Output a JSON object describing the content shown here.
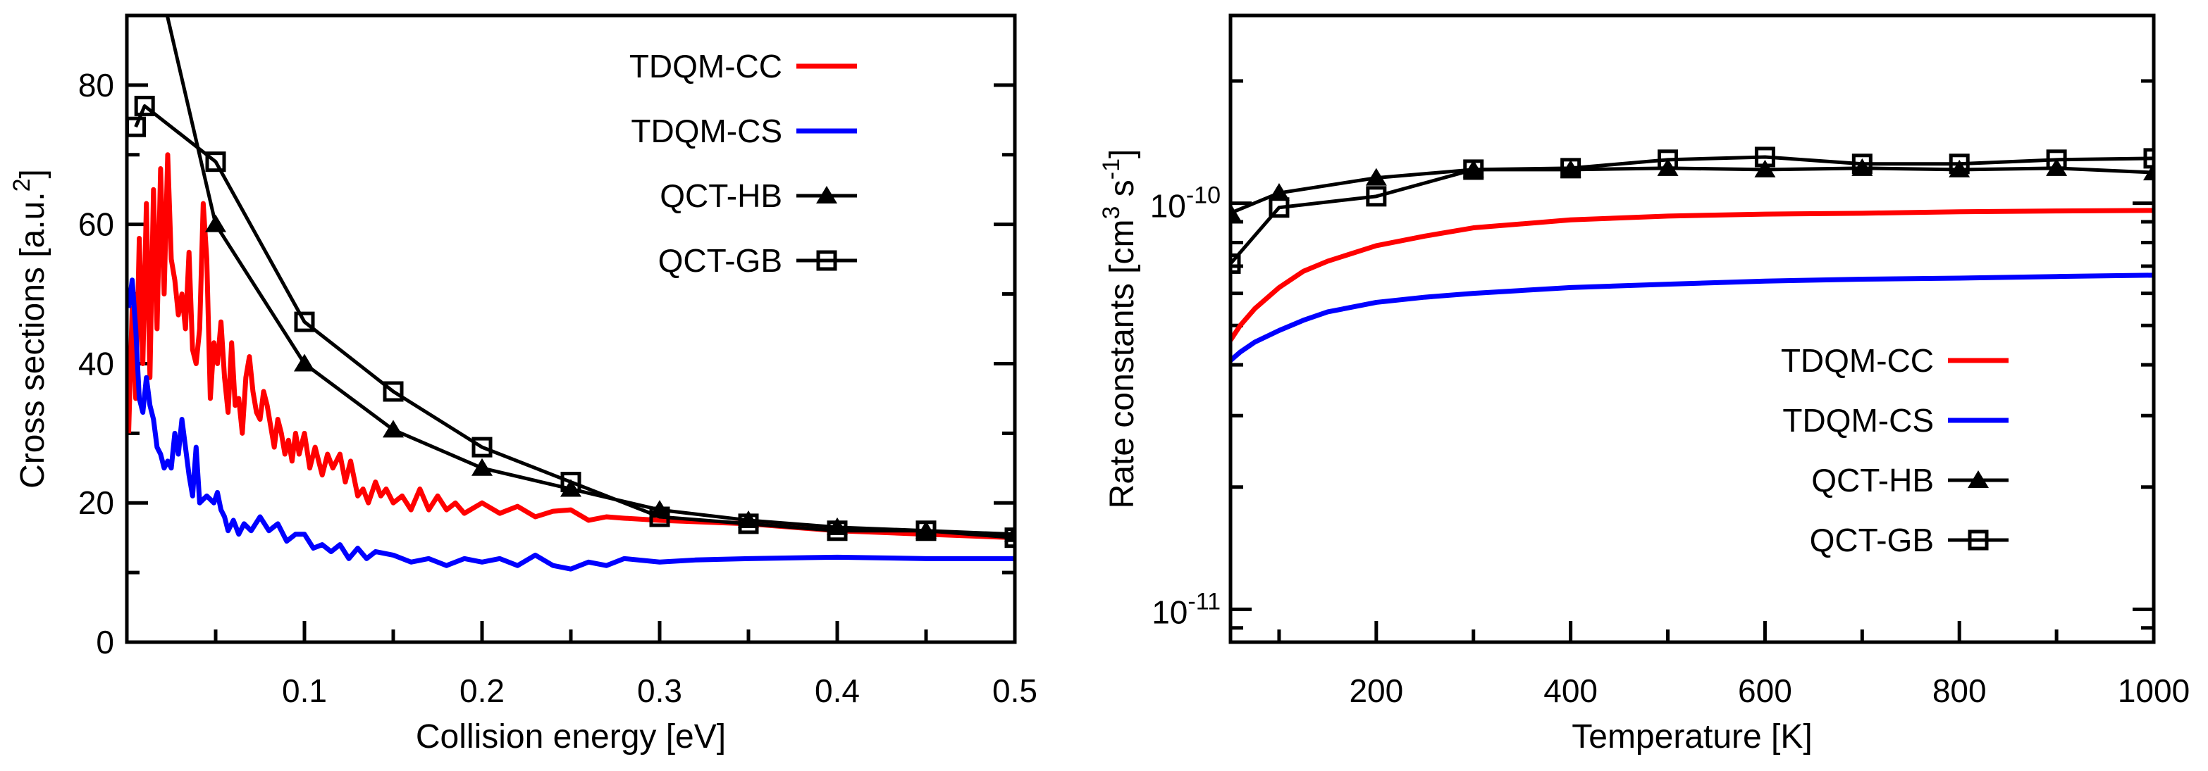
{
  "chart_data": [
    {
      "type": "line",
      "xlabel": "Collision energy [eV]",
      "ylabel_parts": [
        "Cross sections [a.u.",
        "2",
        "]"
      ],
      "xlim": [
        0,
        0.5
      ],
      "ylim": [
        0,
        90
      ],
      "yscale": "linear",
      "x_ticks": [
        0.1,
        0.2,
        0.3,
        0.4,
        0.5
      ],
      "x_tick_labels": [
        "0.1",
        "0.2",
        "0.3",
        "0.4",
        "0.5"
      ],
      "y_ticks": [
        0,
        20,
        40,
        60,
        80
      ],
      "y_tick_labels": [
        "0",
        "20",
        "40",
        "60",
        "80"
      ],
      "legend_position": "top-right",
      "series": [
        {
          "name": "TDQM-CC",
          "color": "#ff0000",
          "marker": "none",
          "x": [
            0.001,
            0.003,
            0.005,
            0.007,
            0.009,
            0.011,
            0.013,
            0.015,
            0.017,
            0.019,
            0.021,
            0.023,
            0.025,
            0.027,
            0.029,
            0.031,
            0.033,
            0.035,
            0.037,
            0.039,
            0.041,
            0.043,
            0.045,
            0.047,
            0.049,
            0.051,
            0.053,
            0.055,
            0.057,
            0.059,
            0.061,
            0.063,
            0.065,
            0.067,
            0.069,
            0.071,
            0.073,
            0.075,
            0.077,
            0.079,
            0.081,
            0.083,
            0.085,
            0.087,
            0.089,
            0.091,
            0.093,
            0.095,
            0.097,
            0.1,
            0.103,
            0.106,
            0.11,
            0.113,
            0.116,
            0.12,
            0.123,
            0.126,
            0.13,
            0.133,
            0.136,
            0.14,
            0.143,
            0.146,
            0.15,
            0.155,
            0.16,
            0.165,
            0.17,
            0.175,
            0.18,
            0.185,
            0.19,
            0.2,
            0.21,
            0.22,
            0.23,
            0.24,
            0.25,
            0.26,
            0.27,
            0.28,
            0.3,
            0.35,
            0.4,
            0.45,
            0.5
          ],
          "y": [
            30,
            48,
            35,
            58,
            40,
            63,
            38,
            65,
            45,
            68,
            50,
            70,
            55,
            52,
            47,
            50,
            45,
            56,
            42,
            40,
            45,
            63,
            55,
            35,
            43,
            40,
            46,
            38,
            33,
            43,
            34,
            35,
            30,
            38,
            41,
            36,
            33,
            32,
            36,
            34,
            31,
            28,
            32,
            30,
            27,
            29,
            26,
            30,
            27,
            30,
            25,
            28,
            24,
            27,
            25,
            27,
            23,
            26,
            21,
            22,
            20,
            23,
            21,
            22,
            20,
            21,
            19,
            22,
            19,
            21,
            19,
            20,
            18.5,
            20,
            18.5,
            19.5,
            18,
            18.8,
            19,
            17.5,
            18,
            17.8,
            17.5,
            17,
            16,
            15.5,
            15
          ]
        },
        {
          "name": "TDQM-CS",
          "color": "#0000ff",
          "marker": "none",
          "x": [
            0.001,
            0.003,
            0.005,
            0.007,
            0.009,
            0.011,
            0.013,
            0.015,
            0.017,
            0.019,
            0.021,
            0.023,
            0.025,
            0.027,
            0.029,
            0.031,
            0.033,
            0.035,
            0.037,
            0.039,
            0.041,
            0.043,
            0.045,
            0.047,
            0.049,
            0.051,
            0.053,
            0.055,
            0.057,
            0.06,
            0.063,
            0.066,
            0.07,
            0.075,
            0.08,
            0.085,
            0.09,
            0.095,
            0.1,
            0.105,
            0.11,
            0.115,
            0.12,
            0.125,
            0.13,
            0.135,
            0.14,
            0.15,
            0.16,
            0.17,
            0.18,
            0.19,
            0.2,
            0.21,
            0.22,
            0.23,
            0.24,
            0.25,
            0.26,
            0.27,
            0.28,
            0.3,
            0.32,
            0.35,
            0.4,
            0.45,
            0.5
          ],
          "y": [
            48,
            52,
            45,
            35,
            33,
            38,
            34,
            32,
            28,
            27,
            25,
            26,
            25,
            30,
            27,
            32,
            28,
            24,
            21,
            28,
            20,
            20.5,
            21,
            20.5,
            20,
            21.5,
            19,
            18,
            16,
            17.5,
            15.5,
            17,
            16,
            18,
            16,
            17,
            14.5,
            15.5,
            15.5,
            13.5,
            14,
            13,
            14,
            12,
            13.5,
            12,
            13,
            12.5,
            11.5,
            12,
            11,
            12,
            11.5,
            12,
            11,
            12.5,
            11,
            10.5,
            11.5,
            11,
            12,
            11.5,
            11.8,
            12,
            12.2,
            12,
            12
          ]
        },
        {
          "name": "QCT-HB",
          "color": "#000000",
          "marker": "triangle",
          "x": [
            0.01,
            0.05,
            0.1,
            0.15,
            0.2,
            0.25,
            0.3,
            0.35,
            0.4,
            0.45,
            0.5
          ],
          "y": [
            104,
            60,
            40,
            30.5,
            25,
            22,
            19,
            17.5,
            16.5,
            16,
            15.5
          ]
        },
        {
          "name": "QCT-GB",
          "color": "#000000",
          "marker": "open-square",
          "x": [
            0.005,
            0.01,
            0.05,
            0.1,
            0.15,
            0.2,
            0.25,
            0.3,
            0.35,
            0.4,
            0.45,
            0.5
          ],
          "y": [
            74,
            77,
            69,
            46,
            36,
            28,
            23,
            18,
            17,
            16,
            16,
            15
          ]
        }
      ]
    },
    {
      "type": "line",
      "xlabel": "Temperature [K]",
      "ylabel_parts": [
        "Rate constants [cm",
        "3",
        " s",
        "-1",
        "]"
      ],
      "xlim": [
        50,
        1000
      ],
      "ylim": [
        8.3e-12,
        2.9e-10
      ],
      "yscale": "log",
      "x_ticks": [
        200,
        400,
        600,
        800,
        1000
      ],
      "x_tick_labels": [
        "200",
        "400",
        "600",
        "800",
        "1000"
      ],
      "y_ticks": [
        1e-11,
        1e-10
      ],
      "y_tick_labels": [
        {
          "base": "10",
          "exp": "-11"
        },
        {
          "base": "10",
          "exp": "-10"
        }
      ],
      "legend_position": "bottom-right",
      "series": [
        {
          "name": "TDQM-CC",
          "color": "#ff0000",
          "marker": "none",
          "x": [
            50,
            60,
            75,
            100,
            125,
            150,
            200,
            250,
            300,
            400,
            500,
            600,
            700,
            800,
            900,
            1000
          ],
          "y": [
            4.6e-11,
            5e-11,
            5.5e-11,
            6.2e-11,
            6.8e-11,
            7.2e-11,
            7.86e-11,
            8.3e-11,
            8.7e-11,
            9.1e-11,
            9.3e-11,
            9.4e-11,
            9.45e-11,
            9.53e-11,
            9.57e-11,
            9.6e-11
          ]
        },
        {
          "name": "TDQM-CS",
          "color": "#0000ff",
          "marker": "none",
          "x": [
            50,
            60,
            75,
            100,
            125,
            150,
            200,
            250,
            300,
            400,
            500,
            600,
            700,
            800,
            900,
            1000
          ],
          "y": [
            4.1e-11,
            4.3e-11,
            4.55e-11,
            4.86e-11,
            5.15e-11,
            5.4e-11,
            5.7e-11,
            5.87e-11,
            6e-11,
            6.2e-11,
            6.32e-11,
            6.43e-11,
            6.5e-11,
            6.54e-11,
            6.6e-11,
            6.65e-11
          ]
        },
        {
          "name": "QCT-HB",
          "color": "#000000",
          "marker": "triangle",
          "x": [
            50,
            100,
            200,
            300,
            400,
            500,
            600,
            700,
            800,
            900,
            1000
          ],
          "y": [
            9.46e-11,
            1.06e-10,
            1.155e-10,
            1.21e-10,
            1.21e-10,
            1.22e-10,
            1.21e-10,
            1.22e-10,
            1.21e-10,
            1.22e-10,
            1.19e-10
          ]
        },
        {
          "name": "QCT-GB",
          "color": "#000000",
          "marker": "open-square",
          "x": [
            50,
            100,
            200,
            300,
            400,
            500,
            600,
            700,
            800,
            900,
            1000
          ],
          "y": [
            7.1e-11,
            9.76e-11,
            1.04e-10,
            1.21e-10,
            1.22e-10,
            1.28e-10,
            1.3e-10,
            1.25e-10,
            1.25e-10,
            1.28e-10,
            1.29e-10
          ]
        }
      ]
    }
  ]
}
